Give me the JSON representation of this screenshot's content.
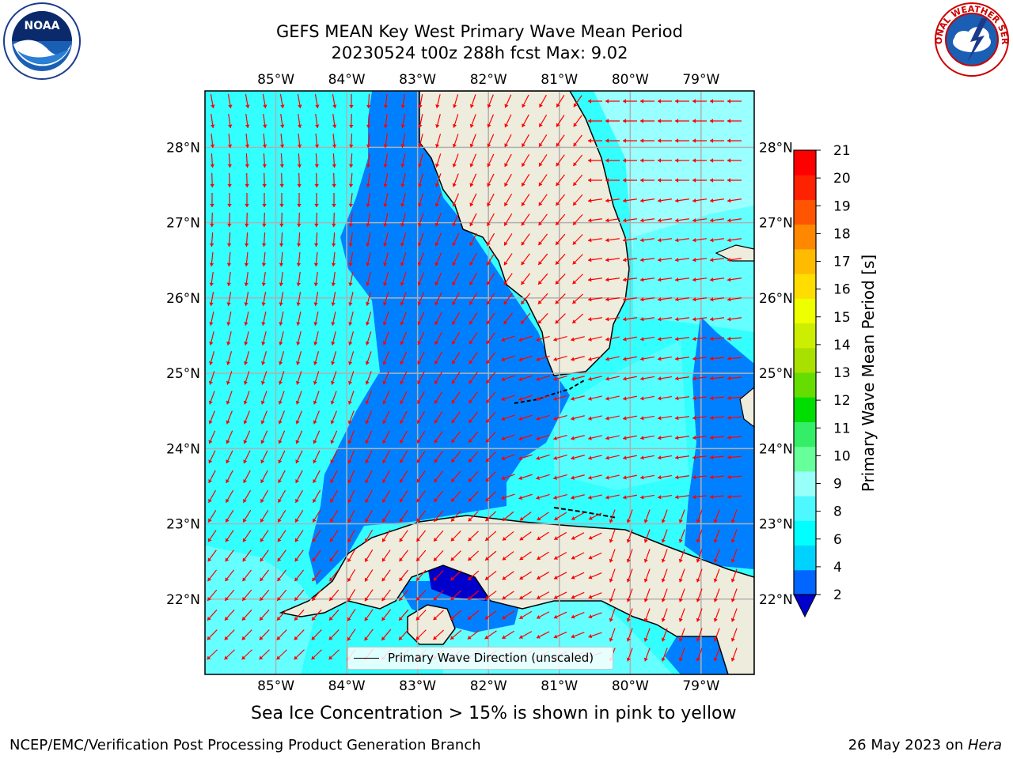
{
  "title": {
    "line1": "GEFS MEAN Key West Primary Wave Mean Period",
    "line2": "20230524 t00z 288h fcst   Max: 9.02"
  },
  "logos": {
    "left": {
      "name": "noaa-logo",
      "text": "NOAA"
    },
    "right": {
      "name": "nws-logo",
      "text": "NATIONAL WEATHER SERVICE"
    }
  },
  "map": {
    "lon_labels": [
      "85°W",
      "84°W",
      "83°W",
      "82°W",
      "81°W",
      "80°W",
      "79°W"
    ],
    "lat_labels": [
      "28°N",
      "27°N",
      "26°N",
      "25°N",
      "24°N",
      "23°N",
      "22°N"
    ],
    "lon_values": [
      -85,
      -84,
      -83,
      -82,
      -81,
      -80,
      -79
    ],
    "lat_values": [
      28,
      27,
      26,
      25,
      24,
      23,
      22
    ],
    "extent": {
      "lon_min": -86.0,
      "lon_max": -78.25,
      "lat_min": 21.0,
      "lat_max": 28.75
    },
    "legend": "Primary Wave Direction (unscaled)",
    "colors": {
      "land": "#eeecdc",
      "coast": "#000000",
      "grid": "#b0b0b0",
      "arrow": "#ff0000"
    }
  },
  "colorbar": {
    "label": "Primary Wave Mean Period [s]",
    "ticks": [
      "2",
      "4",
      "6",
      "8",
      "9",
      "10",
      "11",
      "12",
      "13",
      "14",
      "15",
      "16",
      "17",
      "18",
      "19",
      "20",
      "21"
    ],
    "colors": [
      "#0066ff",
      "#00d2ff",
      "#00ffff",
      "#4df9ff",
      "#99fff9",
      "#66ff99",
      "#33ee66",
      "#00dd00",
      "#66dd00",
      "#aae000",
      "#ccee00",
      "#eeff00",
      "#ffdd00",
      "#ffbb00",
      "#ff8800",
      "#ff5500",
      "#ff2200",
      "#ff0000"
    ],
    "extend_color": "#0000cc"
  },
  "notes": {
    "ice": "Sea Ice Concentration > 15% is shown in pink to yellow"
  },
  "footer": {
    "credit": "NCEP/EMC/Verification Post Processing Product Generation Branch",
    "date": "26 May 2023 on ",
    "machine": "Hera"
  }
}
